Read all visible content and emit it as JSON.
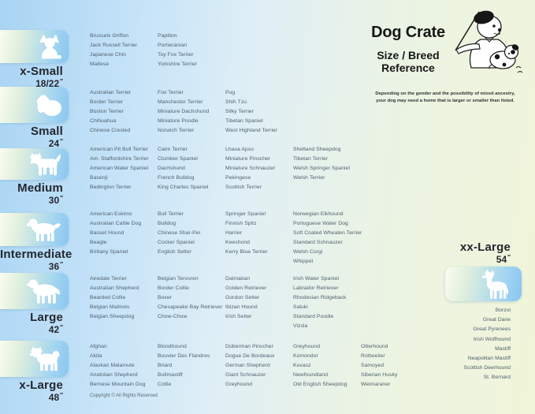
{
  "inch_mark": "″",
  "header": {
    "title": "Dog Crate",
    "subtitle_line1": "Size / Breed",
    "subtitle_line2": "Reference",
    "note_line1": "Depending on the gender and the possibility of mixed ancestry,",
    "note_line2": "your dog may need  a home that is larger or smaller than listed."
  },
  "footer": {
    "copyright": "Copyright © All Rights Reserved"
  },
  "colors": {
    "background_left": "#a9d4f3",
    "background_right": "#f1f5d9",
    "icon_box_blue": "#8ac6ee",
    "icon_box_light": "#fbfcee",
    "breed_text": "#50616e",
    "label_text": "#23282e"
  },
  "sizes": [
    {
      "label": "x-Small",
      "dimension": "18/22",
      "icon": "papillon-dog-icon",
      "columns": [
        [
          "Brussels Griffon",
          "Jack Russell Terrier",
          "Japanese Chin",
          "Maltese"
        ],
        [
          "Papillon",
          "Pomeranian",
          "Toy Fox Terrier",
          "Yorkshire Terrier"
        ]
      ]
    },
    {
      "label": "Small",
      "dimension": "24",
      "icon": "shih-tzu-dog-icon",
      "columns": [
        [
          "Australian Terrier",
          "Border Terrier",
          "Boston Terrier",
          "Chihuahua",
          "Chinese Crested"
        ],
        [
          "Fox Terrier",
          "Manchester Terrier",
          "Miniature Dachshund",
          "Miniature Poodle",
          "Norwich Terrier"
        ],
        [
          "Pug",
          "Shih Tzu",
          "Silky Terrier",
          "Tibetan Spaniel",
          "West Highland Terrier"
        ]
      ]
    },
    {
      "label": "Medium",
      "dimension": "30",
      "icon": "westie-dog-icon",
      "columns": [
        [
          "American Pit Bull Terrier",
          "Am. Staffordshire Terrier",
          "American Water Spaniel",
          "Basenji",
          "Bedington Terrier"
        ],
        [
          "Cairn Terrier",
          "Clumber Spaniel",
          "Dachshund",
          "French Bulldog",
          "King Charles Spaniel"
        ],
        [
          "Lhasa Apso",
          "Miniature Pinscher",
          "Miniature Schnauzer",
          "Pekingese",
          "Scottish Terrier"
        ],
        [
          "Shetland Sheepdog",
          "Tibetan Terrier",
          "Welsh Springer Spaniel",
          "Welsh Terrier"
        ]
      ]
    },
    {
      "label": "Intermediate",
      "dimension": "36",
      "icon": "spaniel-dog-icon",
      "columns": [
        [
          "American Eskimo",
          "Australian Cattle Dog",
          "Basset Hound",
          "Beagle",
          "Brittany Spaniel"
        ],
        [
          "Bull Terrier",
          "Bulldog",
          "Chinese Shar-Pei",
          "Cocker Spaniel",
          "English Setter"
        ],
        [
          "Springer Spaniel",
          "Finnish Spitz",
          "Harrier",
          "Keeshond",
          "Kerry Blue Terrier"
        ],
        [
          "Norwegian Elkhound",
          "Portuguese Water Dog",
          "Soft Coated Wheaten Terrier",
          "Standard Schnauzer",
          "Welsh Corgi",
          "Whippet"
        ]
      ]
    },
    {
      "label": "Large",
      "dimension": "42",
      "icon": "retriever-dog-icon",
      "columns": [
        [
          "Airedale Terrier",
          "Australian Shepherd",
          "Bearded Collie",
          "Belgian Malinois",
          "Belgian Sheepdog"
        ],
        [
          "Belgian Tervuren",
          "Border Collie",
          "Boxer",
          "Chesapeake Bay Retriever",
          "Chow-Chow"
        ],
        [
          "Dalmatian",
          "Golden Retriever",
          "Gordon Setter",
          "Ibizan Hound",
          "Irish Setter"
        ],
        [
          "Irish Water Spaniel",
          "Labrador Retriever",
          "Rhodesian Ridgeback",
          "Saluki",
          "Standard Poodle",
          "Vizsla"
        ]
      ]
    },
    {
      "label": "x-Large",
      "dimension": "48",
      "icon": "akita-dog-icon",
      "columns": [
        [
          "Afghan",
          "Akita",
          "Alaskan Malamute",
          "Anatolian Shepherd",
          "Bernese Mountain Dog"
        ],
        [
          "Bloodhound",
          "Bouvier Des Flandres",
          "Briard",
          "Bullmastiff",
          "Collie"
        ],
        [
          "Doberman Pinscher",
          "Dogue De Bordeaux",
          "German Shepherd",
          "Giant Schnauzer",
          "Greyhound"
        ],
        [
          "Greyhound",
          "Komondor",
          "Kuvasz",
          "Newfoundland",
          "Old English Sheepdog"
        ],
        [
          "Otterhound",
          "Rottweiler",
          "Samoyed",
          "Siberian Husky",
          "Weimaraner"
        ]
      ]
    }
  ],
  "xx_large": {
    "label": "xx-Large",
    "dimension": "54",
    "icon": "great-dane-dog-icon",
    "breeds": [
      "Borzoi",
      "Great Dane",
      "Great Pyrenees",
      "Irish Wolfhound",
      "Mastiff",
      "Neapolitan Mastiff",
      "Scottish Deerhound",
      "St. Bernard"
    ]
  }
}
